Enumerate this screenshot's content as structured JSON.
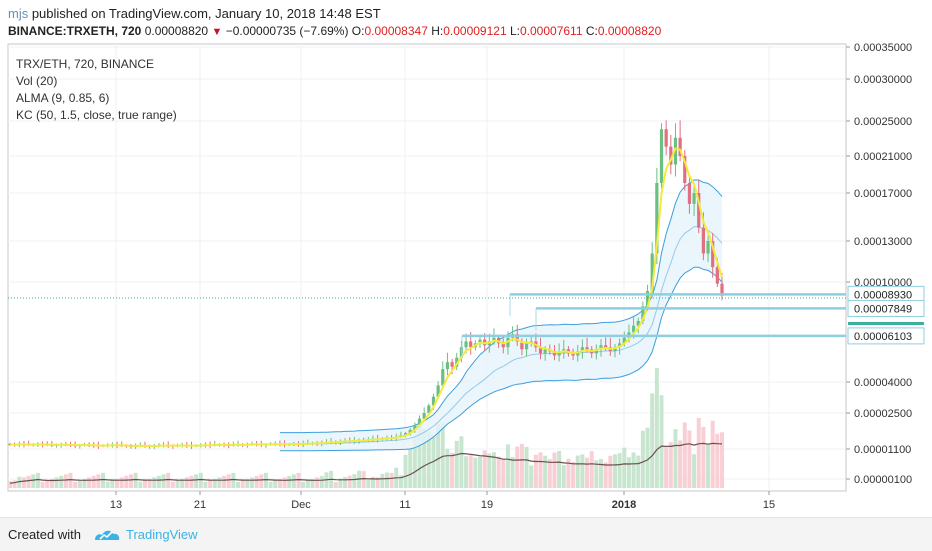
{
  "header": {
    "username": "mjs",
    "published_text": " published on TradingView.com, January 10, 2018 14:48 EST",
    "symbol_line": "BINANCE:TRXETH, 720",
    "last_price": "0.00008820",
    "change": "−0.00000735 (−7.69%)",
    "o_label": "O:",
    "o_value": "0.00008347",
    "h_label": "H:",
    "h_value": "0.00009121",
    "l_label": "L:",
    "l_value": "0.00007611",
    "c_label": "C:",
    "c_value": "0.00008820"
  },
  "legend": [
    "TRX/ETH, 720, BINANCE",
    "Vol (20)",
    "ALMA (9, 0.85, 6)",
    "KC (50, 1.5, close, true range)"
  ],
  "footer": {
    "created_with": "Created with",
    "brand": "TradingView"
  },
  "colors": {
    "up": "#6bbf82",
    "down": "#e0707f",
    "alma": "#f2ea3c",
    "kc": "#3d9fdb",
    "kc_fill": "#e6f3fb",
    "hline": "#8ccfe0",
    "vol_up": "#c8e6cf",
    "vol_down": "#f7cfd5",
    "vol_ma": "#6b4f4f",
    "price_label": "#3a8fd6"
  },
  "chart_data": {
    "type": "candlestick",
    "scale": "log",
    "ylim": [
      8e-06,
      0.00035
    ],
    "y_ticks": [
      "0.00035000",
      "0.00030000",
      "0.00025000",
      "0.00021000",
      "0.00017000",
      "0.00013000",
      "0.00010000",
      "0.00004000",
      "0.00002500",
      "0.00001100",
      "0.00000100"
    ],
    "x_ticks": [
      "13",
      "21",
      "Dec",
      "11",
      "19",
      "2018",
      "15"
    ],
    "price_labels": [
      "0.00008930",
      "0.00007849",
      "0.00006103"
    ],
    "horizontal_lines": [
      8.93e-05,
      7.849e-05,
      6.103e-05
    ],
    "candle_close": [
      1.22e-05,
      1.21e-05,
      1.23e-05,
      1.22e-05,
      1.21e-05,
      1.22e-05,
      1.23e-05,
      1.22e-05,
      1.21e-05,
      1.2e-05,
      1.21e-05,
      1.22e-05,
      1.21e-05,
      1.2e-05,
      1.19e-05,
      1.2e-05,
      1.21e-05,
      1.2e-05,
      1.19e-05,
      1.18e-05,
      1.19e-05,
      1.2e-05,
      1.21e-05,
      1.2e-05,
      1.19e-05,
      1.18e-05,
      1.17e-05,
      1.18e-05,
      1.19e-05,
      1.18e-05,
      1.17e-05,
      1.18e-05,
      1.19e-05,
      1.2e-05,
      1.19e-05,
      1.18e-05,
      1.19e-05,
      1.2e-05,
      1.19e-05,
      1.18e-05,
      1.19e-05,
      1.2e-05,
      1.21e-05,
      1.2e-05,
      1.21e-05,
      1.22e-05,
      1.21e-05,
      1.2e-05,
      1.21e-05,
      1.22e-05,
      1.21e-05,
      1.22e-05,
      1.23e-05,
      1.22e-05,
      1.21e-05,
      1.22e-05,
      1.23e-05,
      1.24e-05,
      1.23e-05,
      1.22e-05,
      1.23e-05,
      1.24e-05,
      1.23e-05,
      1.24e-05,
      1.25e-05,
      1.26e-05,
      1.25e-05,
      1.26e-05,
      1.28e-05,
      1.3e-05,
      1.29e-05,
      1.31e-05,
      1.33e-05,
      1.31e-05,
      1.33e-05,
      1.36e-05,
      1.34e-05,
      1.36e-05,
      1.39e-05,
      1.37e-05,
      1.4e-05,
      1.43e-05,
      1.41e-05,
      1.45e-05,
      1.5e-05,
      1.58e-05,
      1.7e-05,
      1.9e-05,
      2.2e-05,
      2.5e-05,
      2.8e-05,
      3.2e-05,
      3.8e-05,
      4.5e-05,
      4.8e-05,
      4.6e-05,
      5e-05,
      5.5e-05,
      5.8e-05,
      5.5e-05,
      5.7e-05,
      5.9e-05,
      5.6e-05,
      5.8e-05,
      6e-05,
      5.7e-05,
      5.5e-05,
      6e-05,
      6.2e-05,
      5.8e-05,
      5.4e-05,
      5.7e-05,
      5.8e-05,
      5.5e-05,
      5.2e-05,
      5.4e-05,
      5.3e-05,
      5.1e-05,
      5.3e-05,
      5.4e-05,
      5.2e-05,
      5.1e-05,
      5.3e-05,
      5.5e-05,
      5.4e-05,
      5.2e-05,
      5.4e-05,
      5.6e-05,
      5.5e-05,
      5.3e-05,
      5.5e-05,
      5.7e-05,
      6e-05,
      6.3e-05,
      6.7e-05,
      7e-05,
      8e-05,
      9.2e-05,
      0.00012,
      0.00018,
      0.00024,
      0.00022,
      0.0002,
      0.00023,
      0.00021,
      0.00018,
      0.00016,
      0.00017,
      0.00014,
      0.00012,
      0.00013,
      0.00011,
      9.85e-05,
      8.82e-05
    ]
  }
}
